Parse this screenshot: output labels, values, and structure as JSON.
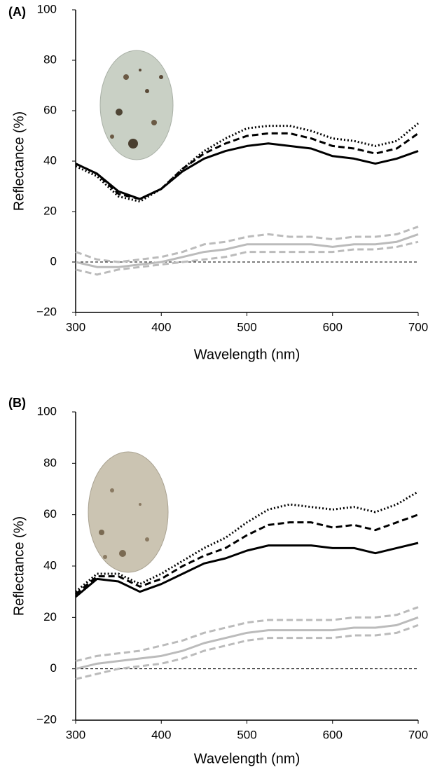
{
  "chart_data": [
    {
      "type": "line",
      "title": "(A)",
      "x_label": "Wavelength (nm)",
      "y_label": "Reflectance (%)",
      "x": [
        300,
        325,
        350,
        375,
        400,
        425,
        450,
        475,
        500,
        525,
        550,
        575,
        600,
        625,
        650,
        675,
        700
      ],
      "series": [
        {
          "color": "#000000",
          "style": "solid",
          "values": [
            39,
            35,
            28,
            25,
            29,
            36,
            41,
            44,
            46,
            47,
            46,
            45,
            42,
            41,
            39,
            41,
            44
          ]
        },
        {
          "color": "#000000",
          "style": "dashed",
          "values": [
            39,
            35,
            27,
            25,
            29,
            37,
            43,
            47,
            50,
            51,
            51,
            49,
            46,
            45,
            43,
            45,
            51
          ]
        },
        {
          "color": "#000000",
          "style": "dotted",
          "values": [
            38,
            34,
            26,
            24,
            29,
            37,
            44,
            49,
            53,
            54,
            54,
            52,
            49,
            48,
            46,
            48,
            55
          ]
        },
        {
          "color": "#bbbbbb",
          "style": "solid",
          "values": [
            0,
            -2,
            -2,
            -1,
            0,
            2,
            4,
            5,
            7,
            7,
            7,
            7,
            6,
            7,
            7,
            8,
            11
          ]
        },
        {
          "color": "#bbbbbb",
          "style": "dashed",
          "values": [
            4,
            1,
            0,
            1,
            2,
            4,
            7,
            8,
            10,
            11,
            10,
            10,
            9,
            10,
            10,
            11,
            14
          ]
        },
        {
          "color": "#bbbbbb",
          "style": "dashed",
          "values": [
            -3,
            -5,
            -3,
            -2,
            -1,
            0,
            1,
            2,
            4,
            4,
            4,
            4,
            4,
            5,
            5,
            6,
            8
          ]
        }
      ],
      "xlim": [
        300,
        700
      ],
      "xticks": [
        300,
        400,
        500,
        600,
        700
      ],
      "ylim": [
        -20,
        100
      ],
      "yticks": [
        {
          "value": -20,
          "label": "−20"
        },
        0,
        20,
        40,
        60,
        80,
        100
      ],
      "hline": 0
    },
    {
      "type": "line",
      "title": "(B)",
      "x_label": "Wavelength (nm)",
      "y_label": "Reflectance (%)",
      "x": [
        300,
        325,
        350,
        375,
        400,
        425,
        450,
        475,
        500,
        525,
        550,
        575,
        600,
        625,
        650,
        675,
        700
      ],
      "series": [
        {
          "color": "#000000",
          "style": "solid",
          "values": [
            28,
            35,
            34,
            30,
            33,
            37,
            41,
            43,
            46,
            48,
            48,
            48,
            47,
            47,
            45,
            47,
            49
          ]
        },
        {
          "color": "#000000",
          "style": "dashed",
          "values": [
            29,
            36,
            36,
            32,
            35,
            40,
            44,
            47,
            52,
            56,
            57,
            57,
            55,
            56,
            54,
            57,
            60
          ]
        },
        {
          "color": "#000000",
          "style": "dotted",
          "values": [
            30,
            37,
            37,
            33,
            37,
            42,
            47,
            51,
            57,
            62,
            64,
            63,
            62,
            63,
            61,
            64,
            69
          ]
        },
        {
          "color": "#bbbbbb",
          "style": "solid",
          "values": [
            0,
            2,
            3,
            4,
            5,
            7,
            10,
            12,
            14,
            15,
            15,
            15,
            15,
            16,
            16,
            17,
            20
          ]
        },
        {
          "color": "#bbbbbb",
          "style": "dashed",
          "values": [
            3,
            5,
            6,
            7,
            9,
            11,
            14,
            16,
            18,
            19,
            19,
            19,
            19,
            20,
            20,
            21,
            24
          ]
        },
        {
          "color": "#bbbbbb",
          "style": "dashed",
          "values": [
            -4,
            -2,
            0,
            1,
            2,
            4,
            7,
            9,
            11,
            12,
            12,
            12,
            12,
            13,
            13,
            14,
            17
          ]
        }
      ],
      "xlim": [
        300,
        700
      ],
      "xticks": [
        300,
        400,
        500,
        600,
        700
      ],
      "ylim": [
        -20,
        100
      ],
      "yticks": [
        {
          "value": -20,
          "label": "−20"
        },
        0,
        20,
        40,
        60,
        80,
        100
      ],
      "hline": 0
    }
  ]
}
